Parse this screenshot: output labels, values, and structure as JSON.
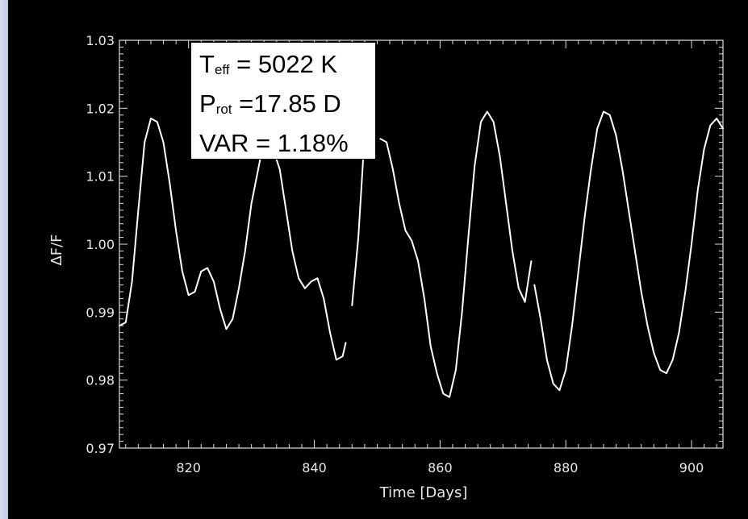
{
  "chart_data": {
    "type": "line",
    "xlabel": "Time [Days]",
    "ylabel": "ΔF/F",
    "xlim": [
      809,
      905
    ],
    "ylim": [
      0.97,
      1.03
    ],
    "x_ticks": [
      820,
      840,
      860,
      880,
      900
    ],
    "x_tick_labels": [
      "820",
      "840",
      "860",
      "880",
      "900"
    ],
    "y_ticks": [
      0.97,
      0.98,
      0.99,
      1.0,
      1.01,
      1.02,
      1.03
    ],
    "y_tick_labels": [
      "0.97",
      "0.98",
      "0.99",
      "1.00",
      "1.01",
      "1.02",
      "1.03"
    ],
    "grid": false,
    "line_color": "#ffffff",
    "background": "#000000",
    "series": [
      {
        "segment": 1,
        "x": [
          809.0,
          810.0,
          811.0,
          812.0,
          813.0,
          814.0,
          815.0,
          816.0,
          817.0,
          818.0,
          819.0,
          820.0,
          821.0,
          822.0,
          823.0,
          824.0,
          825.0,
          826.0,
          827.0,
          828.0,
          829.0,
          830.0,
          831.5
        ],
        "y": [
          0.988,
          0.9885,
          0.9945,
          1.005,
          1.015,
          1.0185,
          1.018,
          1.015,
          1.009,
          1.002,
          0.996,
          0.9925,
          0.993,
          0.996,
          0.9965,
          0.9945,
          0.9905,
          0.9875,
          0.989,
          0.9935,
          0.999,
          1.006,
          1.013
        ]
      },
      {
        "segment": 2,
        "x": [
          833.8,
          834.5,
          835.5,
          836.5,
          837.5,
          838.5,
          839.5,
          840.5,
          841.5,
          842.5,
          843.5,
          844.5,
          845.0
        ],
        "y": [
          1.013,
          1.011,
          1.005,
          0.999,
          0.995,
          0.9935,
          0.9945,
          0.995,
          0.992,
          0.987,
          0.983,
          0.9835,
          0.9855
        ]
      },
      {
        "segment": 3,
        "x": [
          846.0,
          847.0,
          847.8
        ],
        "y": [
          0.991,
          1.001,
          1.013
        ]
      },
      {
        "segment": 4,
        "x": [
          850.5,
          851.5,
          852.5,
          853.5,
          854.5,
          855.5,
          856.5,
          857.5,
          858.5,
          859.5,
          860.5,
          861.5,
          862.5,
          863.5,
          864.5,
          865.5,
          866.5,
          867.5,
          868.5,
          869.5,
          870.5,
          871.5,
          872.5,
          873.5,
          874.5
        ],
        "y": [
          1.0155,
          1.015,
          1.011,
          1.006,
          1.002,
          1.0005,
          0.9975,
          0.992,
          0.985,
          0.981,
          0.978,
          0.9775,
          0.9815,
          0.99,
          1.001,
          1.0115,
          1.018,
          1.0195,
          1.018,
          1.013,
          1.006,
          0.999,
          0.9935,
          0.9915,
          0.9975
        ]
      },
      {
        "segment": 5,
        "x": [
          875.0,
          876.0,
          877.0,
          878.0,
          879.0,
          880.0,
          881.0,
          882.0,
          883.0,
          884.0,
          885.0,
          886.0,
          887.0,
          888.0,
          889.0,
          890.0,
          891.0,
          892.0,
          893.0,
          894.0,
          895.0,
          896.0,
          897.0,
          898.0,
          899.0,
          900.0,
          901.0,
          902.0,
          903.0,
          904.0,
          905.0
        ],
        "y": [
          0.994,
          0.989,
          0.983,
          0.9795,
          0.9785,
          0.9815,
          0.988,
          0.996,
          1.004,
          1.011,
          1.017,
          1.0195,
          1.019,
          1.016,
          1.011,
          1.005,
          0.999,
          0.993,
          0.988,
          0.984,
          0.9815,
          0.981,
          0.983,
          0.987,
          0.993,
          1.0,
          1.008,
          1.014,
          1.0175,
          1.0185,
          1.017
        ]
      }
    ],
    "annotation": {
      "teff_symbol": "T",
      "teff_sub": "eff",
      "teff_value": " = 5022 K",
      "prot_symbol": "P",
      "prot_sub": "rot",
      "prot_value": " =17.85 D",
      "var_text": "VAR = 1.18%"
    }
  }
}
